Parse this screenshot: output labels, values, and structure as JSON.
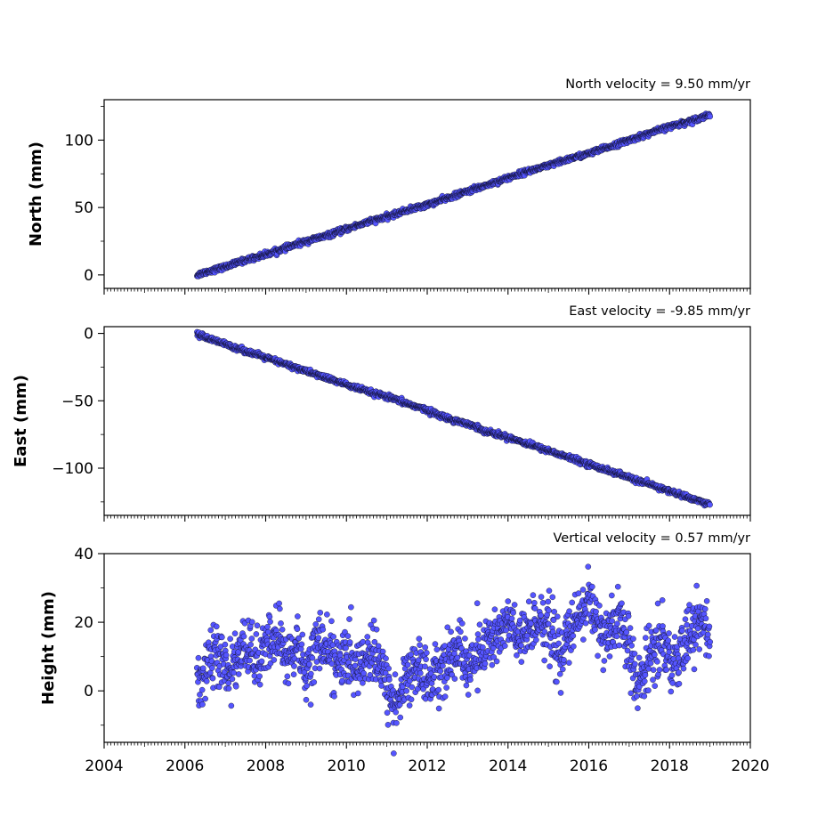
{
  "chart_data": [
    {
      "type": "scatter",
      "title": "North velocity = 9.50 mm/yr",
      "ylabel": "North (mm)",
      "xlim": [
        2004,
        2020
      ],
      "ylim": [
        -10,
        130
      ],
      "yticks": [
        0,
        50,
        100
      ],
      "ytick_labels": [
        "0",
        "50",
        "100"
      ],
      "grid": false,
      "series": [
        {
          "marker_color": "#5555ff",
          "edge_color": "#000000",
          "x": [
            2006.3,
            2006.5,
            2007.0,
            2007.5,
            2008.0,
            2008.5,
            2009.0,
            2009.5,
            2010.0,
            2010.5,
            2011.0,
            2011.5,
            2012.0,
            2012.5,
            2013.0,
            2013.5,
            2014.0,
            2014.5,
            2015.0,
            2015.5,
            2016.0,
            2016.5,
            2017.0,
            2017.5,
            2018.0,
            2018.5,
            2019.0
          ],
          "y": [
            0,
            2,
            6,
            11,
            15,
            20,
            25,
            29,
            34,
            39,
            43,
            48,
            52,
            57,
            62,
            67,
            72,
            77,
            81,
            86,
            90,
            95,
            100,
            105,
            110,
            114,
            119
          ]
        }
      ]
    },
    {
      "type": "scatter",
      "title": "East velocity = -9.85 mm/yr",
      "ylabel": "East (mm)",
      "xlim": [
        2004,
        2020
      ],
      "ylim": [
        -135,
        5
      ],
      "yticks": [
        0,
        -50,
        -100
      ],
      "ytick_labels": [
        "0",
        "−50",
        "−100"
      ],
      "grid": false,
      "series": [
        {
          "marker_color": "#5555ff",
          "edge_color": "#000000",
          "x": [
            2006.3,
            2006.5,
            2007.0,
            2007.5,
            2008.0,
            2008.5,
            2009.0,
            2009.5,
            2010.0,
            2010.5,
            2011.0,
            2011.5,
            2012.0,
            2012.5,
            2013.0,
            2013.5,
            2014.0,
            2014.5,
            2015.0,
            2015.5,
            2016.0,
            2016.5,
            2017.0,
            2017.5,
            2018.0,
            2018.5,
            2019.0
          ],
          "y": [
            0,
            -3,
            -8,
            -13,
            -18,
            -23,
            -28,
            -33,
            -38,
            -43,
            -47,
            -52,
            -57,
            -63,
            -67,
            -73,
            -77,
            -82,
            -87,
            -92,
            -97,
            -102,
            -107,
            -112,
            -117,
            -122,
            -127
          ]
        }
      ]
    },
    {
      "type": "scatter",
      "title": "Vertical velocity = 0.57 mm/yr",
      "ylabel": "Height (mm)",
      "xlim": [
        2004,
        2020
      ],
      "ylim": [
        -15,
        40
      ],
      "yticks": [
        0,
        20,
        40
      ],
      "ytick_labels": [
        "0",
        "20",
        "40"
      ],
      "xticks": [
        2004,
        2006,
        2008,
        2010,
        2012,
        2014,
        2016,
        2018,
        2020
      ],
      "xtick_labels": [
        "2004",
        "2006",
        "2008",
        "2010",
        "2012",
        "2014",
        "2016",
        "2018",
        "2020"
      ],
      "grid": false,
      "series": [
        {
          "marker_color": "#5555ff",
          "edge_color": "#000000",
          "x": [
            2006.3,
            2006.5,
            2006.8,
            2007.0,
            2007.3,
            2007.5,
            2007.8,
            2008.0,
            2008.3,
            2008.5,
            2008.8,
            2009.0,
            2009.3,
            2009.5,
            2009.8,
            2010.0,
            2010.3,
            2010.5,
            2010.8,
            2011.0,
            2011.2,
            2011.5,
            2011.8,
            2012.0,
            2012.3,
            2012.5,
            2012.8,
            2013.0,
            2013.3,
            2013.5,
            2013.8,
            2014.0,
            2014.3,
            2014.5,
            2014.8,
            2015.0,
            2015.3,
            2015.5,
            2015.8,
            2016.0,
            2016.3,
            2016.5,
            2016.8,
            2017.0,
            2017.2,
            2017.5,
            2017.8,
            2018.0,
            2018.3,
            2018.5,
            2018.8,
            2019.0
          ],
          "y": [
            2,
            6,
            12,
            5,
            9,
            14,
            8,
            12,
            17,
            9,
            13,
            6,
            15,
            12,
            8,
            10,
            6,
            11,
            8,
            2,
            -5,
            4,
            8,
            3,
            6,
            9,
            12,
            7,
            11,
            14,
            17,
            20,
            14,
            17,
            22,
            18,
            10,
            16,
            22,
            27,
            18,
            14,
            22,
            12,
            0,
            10,
            16,
            7,
            13,
            17,
            21,
            14
          ]
        }
      ]
    }
  ]
}
